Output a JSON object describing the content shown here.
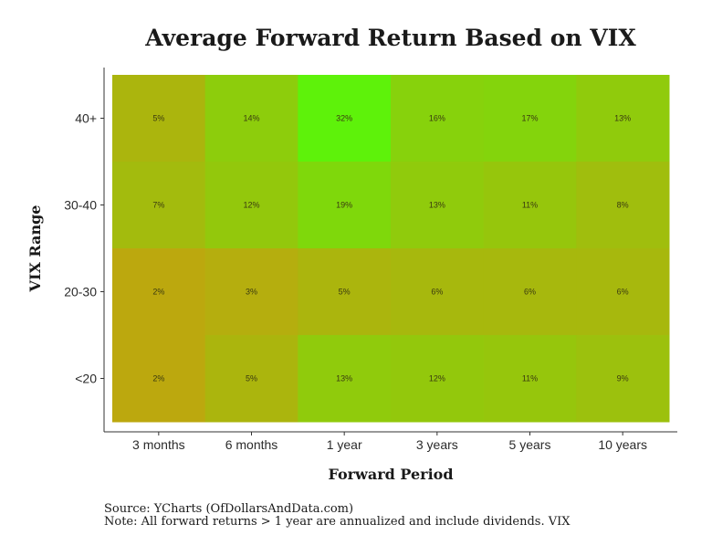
{
  "chart_data": {
    "type": "heatmap",
    "title": "Average Forward Return Based on VIX",
    "xlabel": "Forward Period",
    "ylabel": "VIX Range",
    "x_categories": [
      "3 months",
      "6 months",
      "1 year",
      "3 years",
      "5 years",
      "10 years"
    ],
    "y_categories": [
      "40+",
      "30-40",
      "20-30",
      "<20"
    ],
    "values": [
      [
        5,
        14,
        32,
        16,
        17,
        13
      ],
      [
        7,
        12,
        19,
        13,
        11,
        8
      ],
      [
        2,
        3,
        5,
        6,
        6,
        6
      ],
      [
        2,
        5,
        13,
        12,
        11,
        9
      ]
    ],
    "value_format": "percent",
    "color_low": "#bca80e",
    "color_high": "#5ef20a",
    "value_range": [
      2,
      32
    ],
    "legend": "none",
    "grid": false
  },
  "footer": {
    "source": "Source: YCharts (OfDollarsAndData.com)",
    "note": "Note: All forward returns > 1 year are annualized and include dividends. VIX"
  }
}
